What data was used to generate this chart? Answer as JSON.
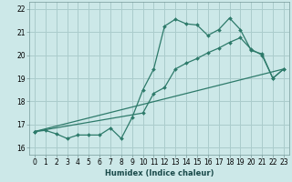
{
  "xlabel": "Humidex (Indice chaleur)",
  "bg_color": "#cce8e8",
  "grid_color": "#aacccc",
  "line_color": "#2d7a6a",
  "xlim": [
    -0.5,
    23.5
  ],
  "ylim": [
    15.7,
    22.3
  ],
  "xticks": [
    0,
    1,
    2,
    3,
    4,
    5,
    6,
    7,
    8,
    9,
    10,
    11,
    12,
    13,
    14,
    15,
    16,
    17,
    18,
    19,
    20,
    21,
    22,
    23
  ],
  "yticks": [
    16,
    17,
    18,
    19,
    20,
    21,
    22
  ],
  "line1_x": [
    0,
    1,
    2,
    3,
    4,
    5,
    6,
    7,
    8,
    9,
    10,
    11,
    12,
    13,
    14,
    15,
    16,
    17,
    18,
    19,
    20,
    21,
    22,
    23
  ],
  "line1_y": [
    16.7,
    16.75,
    16.6,
    16.4,
    16.55,
    16.55,
    16.55,
    16.85,
    16.4,
    17.3,
    18.5,
    19.4,
    21.25,
    21.55,
    21.35,
    21.3,
    20.85,
    21.1,
    21.6,
    21.1,
    20.2,
    20.05,
    19.0,
    19.4
  ],
  "line2_x": [
    0,
    23
  ],
  "line2_y": [
    16.7,
    19.4
  ],
  "line3_x": [
    0,
    10,
    11,
    12,
    13,
    14,
    15,
    16,
    17,
    18,
    19,
    20,
    21,
    22,
    23
  ],
  "line3_y": [
    16.7,
    17.5,
    18.35,
    18.6,
    19.4,
    19.65,
    19.85,
    20.1,
    20.3,
    20.55,
    20.75,
    20.25,
    20.0,
    19.0,
    19.4
  ]
}
